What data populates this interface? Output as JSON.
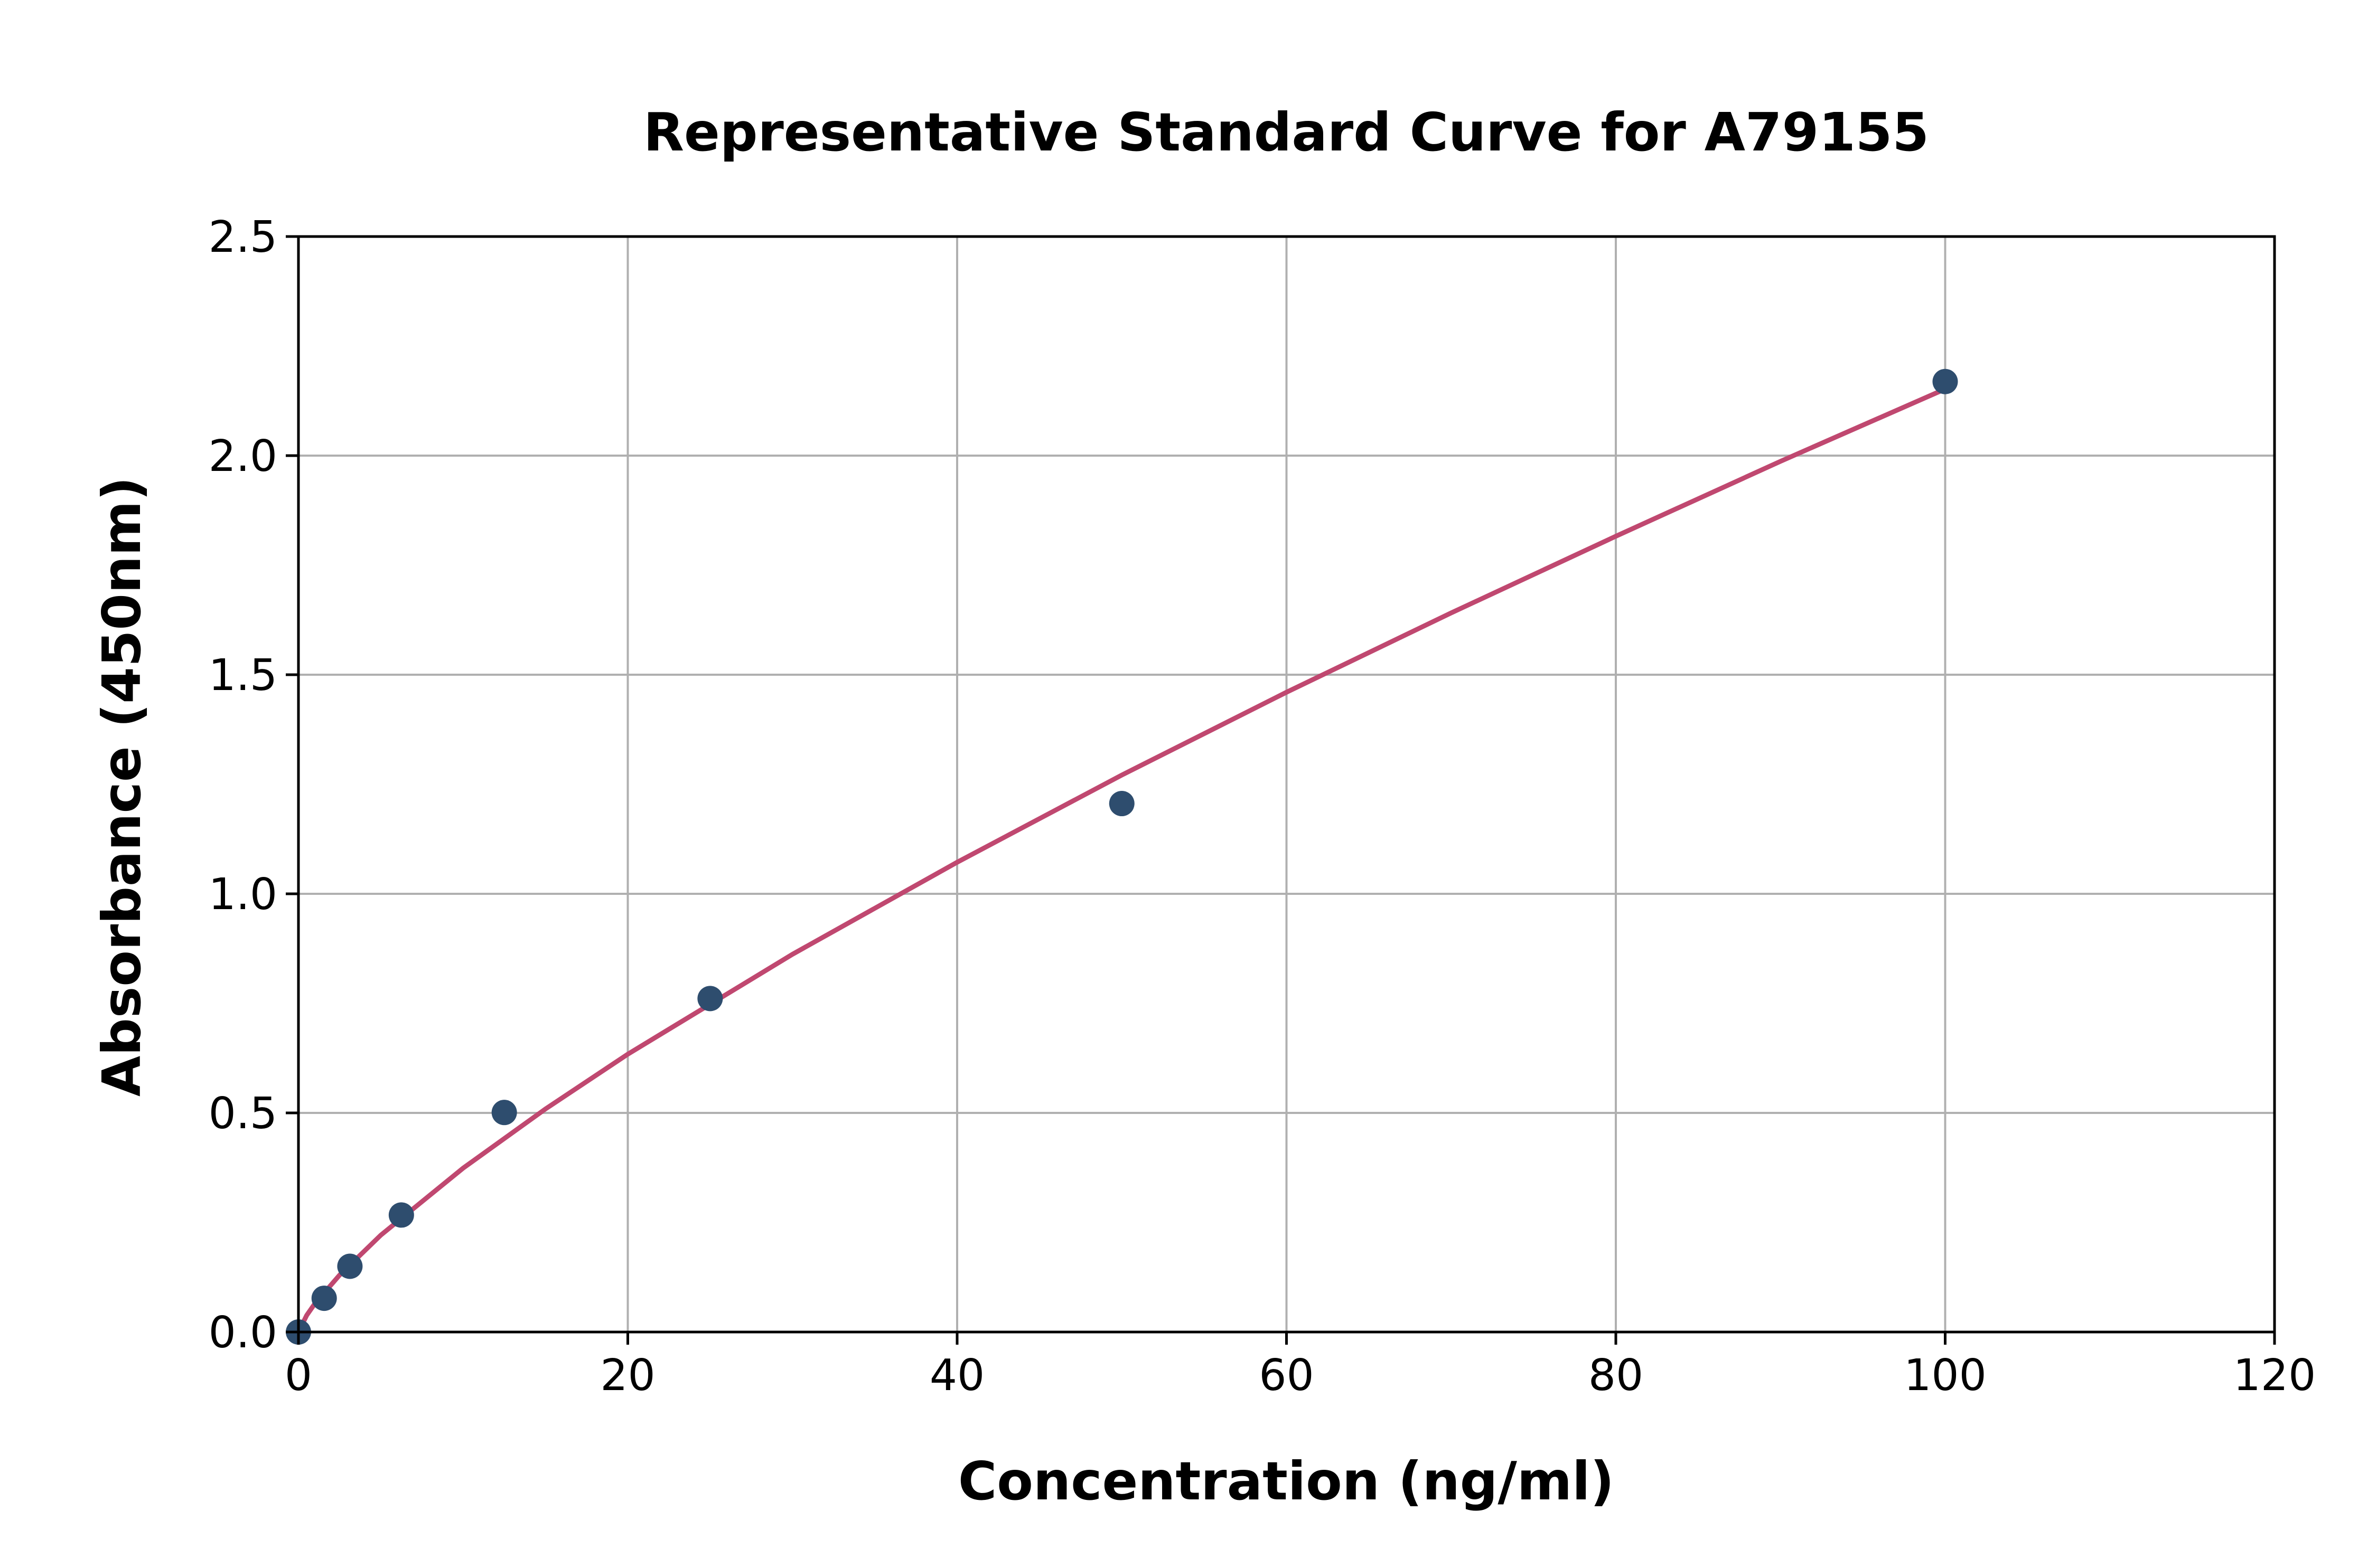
{
  "chart_data": {
    "type": "scatter",
    "title": "Representative Standard Curve for A79155",
    "xlabel": "Concentration (ng/ml)",
    "ylabel": "Absorbance (450nm)",
    "xlim": [
      0,
      120
    ],
    "ylim": [
      0,
      2.5
    ],
    "xticks": [
      "0",
      "20",
      "40",
      "60",
      "80",
      "100",
      "120"
    ],
    "yticks": [
      "0.0",
      "0.5",
      "1.0",
      "1.5",
      "2.0",
      "2.5"
    ],
    "grid": true,
    "legend": "none",
    "points": {
      "x": [
        0,
        1.5625,
        3.125,
        6.25,
        12.5,
        25,
        50,
        100
      ],
      "y": [
        0.0,
        0.077,
        0.15,
        0.267,
        0.501,
        0.761,
        1.206,
        2.169
      ],
      "color": "#2e4d6e"
    },
    "fit_curve": {
      "x": [
        0,
        0.5,
        1,
        2.5,
        5,
        10,
        15,
        20,
        30,
        40,
        50,
        60,
        70,
        80,
        90,
        100
      ],
      "y": [
        0,
        0.038,
        0.065,
        0.13,
        0.221,
        0.374,
        0.509,
        0.634,
        0.862,
        1.072,
        1.271,
        1.46,
        1.641,
        1.816,
        1.987,
        2.152
      ],
      "color": "#c04870"
    },
    "grid_color": "#b0b0b0"
  }
}
